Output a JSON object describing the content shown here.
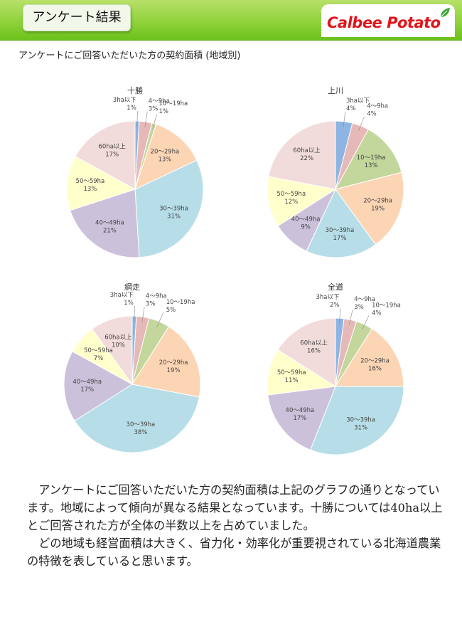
{
  "header": {
    "title": "アンケート結果"
  },
  "logo": {
    "text": "Calbee Potato",
    "leaf_color": "#3aa836",
    "color": "#e2131b"
  },
  "subtitle": "アンケートにご回答いただいた方の契約面積 (地域別)",
  "colors": {
    "3ha以下": "#8eb4e3",
    "4～9ha": "#e6b9b8",
    "10～19ha": "#c3d69b",
    "20～29ha": "#fcd5b5",
    "30～39ha": "#b7dee8",
    "40～49ha": "#ccc1da",
    "50～59ha": "#ffffcc",
    "60ha以上": "#f2dcdb"
  },
  "chart_data": [
    {
      "type": "pie",
      "title": "十勝",
      "slices": [
        {
          "label": "3ha以下",
          "value": 1,
          "pct": "1%"
        },
        {
          "label": "4～9ha",
          "value": 3,
          "pct": "3%"
        },
        {
          "label": "10～19ha",
          "value": 1,
          "pct": "1%"
        },
        {
          "label": "20～29ha",
          "value": 13,
          "pct": "13%"
        },
        {
          "label": "30～39ha",
          "value": 31,
          "pct": "31%"
        },
        {
          "label": "40～49ha",
          "value": 21,
          "pct": "21%"
        },
        {
          "label": "50～59ha",
          "value": 13,
          "pct": "13%"
        },
        {
          "label": "60ha以上",
          "value": 17,
          "pct": "17%"
        }
      ]
    },
    {
      "type": "pie",
      "title": "上川",
      "slices": [
        {
          "label": "3ha以下",
          "value": 4,
          "pct": "4%"
        },
        {
          "label": "4～9ha",
          "value": 4,
          "pct": "4%"
        },
        {
          "label": "10～19ha",
          "value": 13,
          "pct": "13%"
        },
        {
          "label": "20～29ha",
          "value": 19,
          "pct": "19%"
        },
        {
          "label": "30～39ha",
          "value": 17,
          "pct": "17%"
        },
        {
          "label": "40～49ha",
          "value": 9,
          "pct": "9%"
        },
        {
          "label": "50～59ha",
          "value": 12,
          "pct": "12%"
        },
        {
          "label": "60ha以上",
          "value": 22,
          "pct": "22%"
        }
      ]
    },
    {
      "type": "pie",
      "title": "網走",
      "slices": [
        {
          "label": "3ha以下",
          "value": 1,
          "pct": "1%"
        },
        {
          "label": "4～9ha",
          "value": 3,
          "pct": "3%"
        },
        {
          "label": "10～19ha",
          "value": 5,
          "pct": "5%"
        },
        {
          "label": "20～29ha",
          "value": 19,
          "pct": "19%"
        },
        {
          "label": "30～39ha",
          "value": 38,
          "pct": "38%"
        },
        {
          "label": "40～49ha",
          "value": 17,
          "pct": "17%"
        },
        {
          "label": "50～59ha",
          "value": 7,
          "pct": "7%"
        },
        {
          "label": "60ha以上",
          "value": 10,
          "pct": "10%"
        }
      ]
    },
    {
      "type": "pie",
      "title": "全道",
      "slices": [
        {
          "label": "3ha以下",
          "value": 2,
          "pct": "2%"
        },
        {
          "label": "4～9ha",
          "value": 3,
          "pct": "3%"
        },
        {
          "label": "10～19ha",
          "value": 4,
          "pct": "4%"
        },
        {
          "label": "20～29ha",
          "value": 16,
          "pct": "16%"
        },
        {
          "label": "30～39ha",
          "value": 31,
          "pct": "31%"
        },
        {
          "label": "40～49ha",
          "value": 17,
          "pct": "17%"
        },
        {
          "label": "50～59ha",
          "value": 11,
          "pct": "11%"
        },
        {
          "label": "60ha以上",
          "value": 16,
          "pct": "16%"
        }
      ]
    }
  ],
  "body": {
    "p1": "アンケートにご回答いただいた方の契約面積は上記のグラフの通りとなっています。地域によって傾向が異なる結果となっています。十勝については40ha以上とご回答された方が全体の半数以上を占めていました。",
    "p2": "どの地域も経営面積は大きく、省力化・効率化が重要視されている北海道農業の特徴を表していると思います。"
  }
}
